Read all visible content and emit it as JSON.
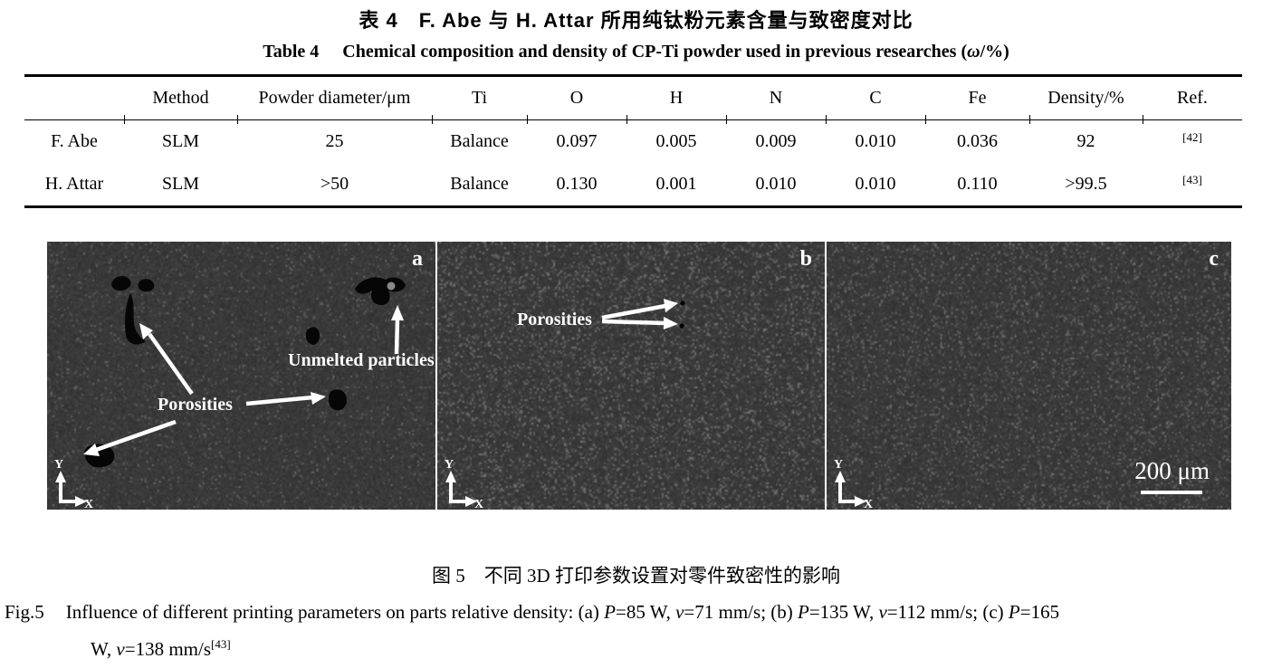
{
  "table_section": {
    "title_cn": "表 4　F. Abe 与 H. Attar 所用纯钛粉元素含量与致密度对比",
    "title_en": {
      "label": "Table 4",
      "pre": "Chemical composition and density of CP-Ti powder used in previous researches (",
      "omega": "ω",
      "suffix": "/%)"
    },
    "table": {
      "headers": [
        "",
        "Method",
        "Powder diameter/μm",
        "Ti",
        "O",
        "H",
        "N",
        "C",
        "Fe",
        "Density/%",
        "Ref."
      ],
      "rows": [
        {
          "cells": [
            "F. Abe",
            "SLM",
            "25",
            "Balance",
            "0.097",
            "0.005",
            "0.009",
            "0.010",
            "0.036",
            "92"
          ],
          "ref": "[42]"
        },
        {
          "cells": [
            "H. Attar",
            "SLM",
            ">50",
            "Balance",
            "0.130",
            "0.001",
            "0.010",
            "0.010",
            "0.110",
            ">99.5"
          ],
          "ref": "[43]"
        }
      ]
    }
  },
  "figure": {
    "panels": [
      {
        "label": "a",
        "axis_x": "X",
        "axis_y": "Y",
        "annotations": {
          "porosities": "Porosities",
          "unmelted": "Unmelted particles"
        }
      },
      {
        "label": "b",
        "axis_x": "X",
        "axis_y": "Y",
        "annotations": {
          "porosities": "Porosities"
        }
      },
      {
        "label": "c",
        "axis_x": "X",
        "axis_y": "Y",
        "scale_bar": "200 μm"
      }
    ],
    "colors": {
      "sem_base": "#3c3c3c",
      "annotation": "#ffffff",
      "pore": "#060606"
    },
    "caption_cn": "图 5　不同 3D 打印参数设置对零件致密性的影响",
    "caption_en": {
      "fig_label": "Fig.5",
      "line1": [
        {
          "t": "Influence of different printing parameters on parts relative density: (a) ",
          "s": "n"
        },
        {
          "t": "P",
          "s": "i"
        },
        {
          "t": "=85 W, ",
          "s": "n"
        },
        {
          "t": "v",
          "s": "i"
        },
        {
          "t": "=71 mm/s; (b) ",
          "s": "n"
        },
        {
          "t": "P",
          "s": "i"
        },
        {
          "t": "=135 W, ",
          "s": "n"
        },
        {
          "t": "v",
          "s": "i"
        },
        {
          "t": "=112 mm/s; (c) ",
          "s": "n"
        },
        {
          "t": "P",
          "s": "i"
        },
        {
          "t": "=165",
          "s": "n"
        }
      ],
      "line2": [
        {
          "t": "W, ",
          "s": "n"
        },
        {
          "t": "v",
          "s": "i"
        },
        {
          "t": "=138 mm/s",
          "s": "n"
        },
        {
          "t": "[43]",
          "s": "sup"
        }
      ]
    }
  }
}
